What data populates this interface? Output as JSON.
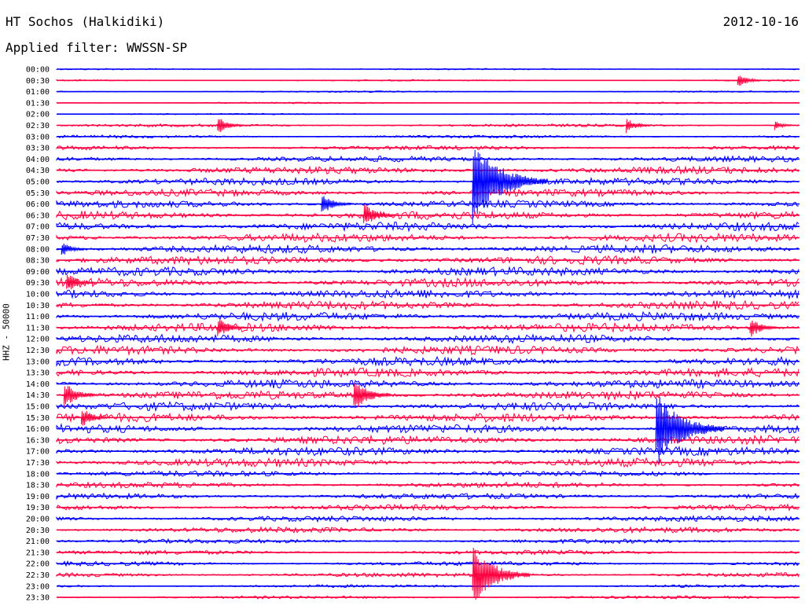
{
  "header": {
    "station": "HT Sochos (Halkidiki)",
    "date": "2012-10-16",
    "filter_text": "Applied filter: WWSSN-SP"
  },
  "chart_data": {
    "type": "line",
    "title": "HT Sochos (Halkidiki)",
    "ylabel": "HHZ - 50000",
    "xlabel": "",
    "rows": [
      "00:00",
      "00:30",
      "01:00",
      "01:30",
      "02:00",
      "02:30",
      "03:00",
      "03:30",
      "04:00",
      "04:30",
      "05:00",
      "05:30",
      "06:00",
      "06:30",
      "07:00",
      "07:30",
      "08:00",
      "08:30",
      "09:00",
      "09:30",
      "10:00",
      "10:30",
      "11:00",
      "11:30",
      "12:00",
      "12:30",
      "13:00",
      "13:30",
      "14:00",
      "14:30",
      "15:00",
      "15:30",
      "16:00",
      "16:30",
      "17:00",
      "17:30",
      "18:00",
      "18:30",
      "19:00",
      "19:30",
      "20:00",
      "20:30",
      "21:00",
      "21:30",
      "22:00",
      "22:30",
      "23:00",
      "23:30"
    ],
    "colors": [
      "#0000ff",
      "#ff0040"
    ],
    "minutes_per_row": 30,
    "noise_level": [
      1,
      1,
      1,
      1,
      1,
      2,
      2,
      3,
      4,
      5,
      5,
      5,
      5,
      6,
      6,
      6,
      6,
      6,
      6,
      6,
      6,
      6,
      6,
      6,
      6,
      6,
      6,
      6,
      6,
      6,
      6,
      6,
      6,
      6,
      6,
      6,
      4,
      4,
      4,
      4,
      4,
      4,
      3,
      3,
      3,
      3,
      2,
      2
    ],
    "events": [
      {
        "row": 1,
        "minute": 27.5,
        "amp": 10
      },
      {
        "row": 5,
        "minute": 6.5,
        "amp": 12
      },
      {
        "row": 5,
        "minute": 23.0,
        "amp": 10
      },
      {
        "row": 5,
        "minute": 29.0,
        "amp": 6
      },
      {
        "row": 10,
        "minute": 16.8,
        "amp": 55
      },
      {
        "row": 12,
        "minute": 10.7,
        "amp": 15
      },
      {
        "row": 13,
        "minute": 12.4,
        "amp": 16
      },
      {
        "row": 16,
        "minute": 0.2,
        "amp": 10
      },
      {
        "row": 19,
        "minute": 0.4,
        "amp": 14
      },
      {
        "row": 23,
        "minute": 6.5,
        "amp": 14
      },
      {
        "row": 23,
        "minute": 28.0,
        "amp": 14
      },
      {
        "row": 29,
        "minute": 0.3,
        "amp": 18
      },
      {
        "row": 29,
        "minute": 12.0,
        "amp": 22
      },
      {
        "row": 31,
        "minute": 1.0,
        "amp": 14
      },
      {
        "row": 32,
        "minute": 24.2,
        "amp": 50
      },
      {
        "row": 45,
        "minute": 16.8,
        "amp": 40
      }
    ]
  }
}
